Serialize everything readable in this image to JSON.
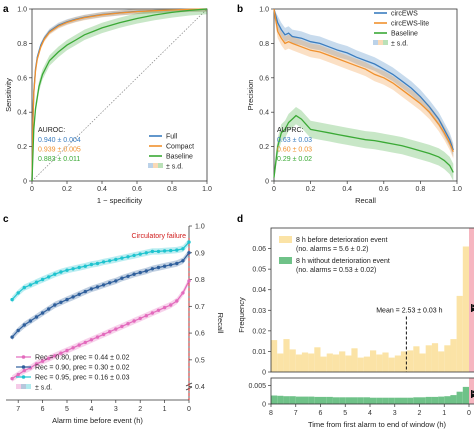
{
  "chart_data": [
    {
      "panel": "a",
      "type": "line",
      "xlabel": "1 − specificity",
      "ylabel": "Sensitivity",
      "xlim": [
        0,
        1.0
      ],
      "ylim": [
        0,
        1.0
      ],
      "xticks": [
        "0",
        "0.2",
        "0.4",
        "0.6",
        "0.8",
        "1.0"
      ],
      "yticks": [
        "0",
        "0.2",
        "0.4",
        "0.6",
        "0.8",
        "1.0"
      ],
      "legend": {
        "entries": [
          "Full",
          "Compact",
          "Baseline"
        ],
        "sd_label": "± s.d.",
        "placement": "bottom-right"
      },
      "annotation": {
        "title": "AUROC:",
        "lines": [
          "0.940 ± 0.004",
          "0.939 ± 0.005",
          "0.883 ± 0.011"
        ]
      },
      "colors": [
        "#3b7dbf",
        "#f0912e",
        "#3aa935"
      ],
      "series": [
        {
          "name": "Full",
          "x": [
            0,
            0.005,
            0.01,
            0.02,
            0.03,
            0.05,
            0.07,
            0.1,
            0.15,
            0.2,
            0.25,
            0.3,
            0.4,
            0.5,
            0.6,
            0.7,
            0.8,
            0.9,
            1.0
          ],
          "y": [
            0,
            0.35,
            0.52,
            0.65,
            0.72,
            0.79,
            0.83,
            0.87,
            0.905,
            0.925,
            0.94,
            0.952,
            0.968,
            0.978,
            0.986,
            0.991,
            0.995,
            0.998,
            1.0
          ],
          "sd": 0.015
        },
        {
          "name": "Compact",
          "x": [
            0,
            0.005,
            0.01,
            0.02,
            0.03,
            0.05,
            0.07,
            0.1,
            0.15,
            0.2,
            0.25,
            0.3,
            0.4,
            0.5,
            0.6,
            0.7,
            0.8,
            0.9,
            1.0
          ],
          "y": [
            0,
            0.34,
            0.51,
            0.64,
            0.71,
            0.78,
            0.825,
            0.865,
            0.9,
            0.922,
            0.938,
            0.95,
            0.966,
            0.977,
            0.985,
            0.99,
            0.994,
            0.998,
            1.0
          ],
          "sd": 0.015
        },
        {
          "name": "Baseline",
          "x": [
            0,
            0.01,
            0.02,
            0.04,
            0.06,
            0.08,
            0.1,
            0.15,
            0.2,
            0.25,
            0.3,
            0.35,
            0.4,
            0.5,
            0.6,
            0.7,
            0.8,
            0.9,
            1.0
          ],
          "y": [
            0,
            0.3,
            0.42,
            0.55,
            0.62,
            0.66,
            0.7,
            0.75,
            0.79,
            0.82,
            0.85,
            0.87,
            0.89,
            0.92,
            0.945,
            0.965,
            0.98,
            0.992,
            1.0
          ],
          "sd": 0.03
        }
      ]
    },
    {
      "panel": "b",
      "type": "line",
      "xlabel": "Recall",
      "ylabel": "Precision",
      "xlim": [
        0,
        1.0
      ],
      "ylim": [
        0,
        1.0
      ],
      "xticks": [
        "0",
        "0.2",
        "0.4",
        "0.6",
        "0.8",
        "1.0"
      ],
      "yticks": [
        "0",
        "0.2",
        "0.4",
        "0.6",
        "0.8",
        "1.0"
      ],
      "legend": {
        "entries": [
          "circEWS",
          "circEWS-lite",
          "Baseline"
        ],
        "sd_label": "± s.d.",
        "placement": "top-right"
      },
      "annotation": {
        "title": "AUPRC:",
        "lines": [
          "0.63 ± 0.03",
          "0.60 ± 0.03",
          "0.29 ± 0.02"
        ]
      },
      "colors": [
        "#3b7dbf",
        "#f0912e",
        "#3aa935"
      ],
      "series": [
        {
          "name": "circEWS",
          "x": [
            0,
            0.02,
            0.04,
            0.06,
            0.08,
            0.1,
            0.15,
            0.2,
            0.25,
            0.3,
            0.35,
            0.4,
            0.45,
            0.5,
            0.55,
            0.6,
            0.65,
            0.7,
            0.75,
            0.8,
            0.85,
            0.9,
            0.93,
            0.96,
            0.98
          ],
          "y": [
            1.0,
            0.92,
            0.88,
            0.85,
            0.86,
            0.84,
            0.83,
            0.81,
            0.8,
            0.78,
            0.76,
            0.745,
            0.72,
            0.7,
            0.68,
            0.65,
            0.62,
            0.58,
            0.54,
            0.49,
            0.43,
            0.36,
            0.3,
            0.24,
            0.18
          ],
          "sd": 0.04
        },
        {
          "name": "circEWS-lite",
          "x": [
            0,
            0.02,
            0.04,
            0.06,
            0.08,
            0.1,
            0.15,
            0.2,
            0.25,
            0.3,
            0.35,
            0.4,
            0.45,
            0.5,
            0.55,
            0.6,
            0.65,
            0.7,
            0.75,
            0.8,
            0.85,
            0.9,
            0.93,
            0.96,
            0.98
          ],
          "y": [
            1.0,
            0.87,
            0.83,
            0.8,
            0.81,
            0.8,
            0.78,
            0.76,
            0.75,
            0.73,
            0.71,
            0.69,
            0.67,
            0.65,
            0.62,
            0.6,
            0.57,
            0.53,
            0.49,
            0.45,
            0.4,
            0.33,
            0.28,
            0.22,
            0.17
          ],
          "sd": 0.04
        },
        {
          "name": "Baseline",
          "x": [
            0,
            0.02,
            0.04,
            0.06,
            0.08,
            0.1,
            0.12,
            0.15,
            0.2,
            0.25,
            0.3,
            0.35,
            0.4,
            0.45,
            0.5,
            0.55,
            0.6,
            0.65,
            0.7,
            0.75,
            0.8,
            0.85,
            0.9,
            0.93,
            0.96,
            0.98
          ],
          "y": [
            0.02,
            0.2,
            0.28,
            0.3,
            0.34,
            0.36,
            0.38,
            0.36,
            0.3,
            0.29,
            0.28,
            0.27,
            0.26,
            0.25,
            0.24,
            0.235,
            0.225,
            0.215,
            0.205,
            0.19,
            0.175,
            0.16,
            0.14,
            0.12,
            0.09,
            0.05
          ],
          "sd": 0.05
        }
      ]
    },
    {
      "panel": "c",
      "type": "line",
      "xlabel": "Alarm time before event (h)",
      "ylabel": "Recall",
      "xlim": [
        7.5,
        0
      ],
      "ylim": [
        0.35,
        1.0
      ],
      "xticks": [
        "7",
        "6",
        "5",
        "4",
        "3",
        "2",
        "1",
        "0"
      ],
      "yticks": [
        "0.4",
        "0.5",
        "0.6",
        "0.7",
        "0.8",
        "0.9",
        "1.0"
      ],
      "annotation": "Circulatory failure",
      "legend": {
        "entries": [
          "Rec = 0.80, prec = 0.44 ± 0.02",
          "Rec = 0.90, prec = 0.30 ± 0.02",
          "Rec = 0.95, prec = 0.16 ± 0.03"
        ],
        "sd_label": "± s.d.",
        "placement": "bottom-left"
      },
      "colors": [
        "#e36bbd",
        "#2f5f9c",
        "#1fc4cf"
      ],
      "x": [
        7.25,
        7.0,
        6.75,
        6.5,
        6.25,
        6.0,
        5.75,
        5.5,
        5.25,
        5.0,
        4.75,
        4.5,
        4.25,
        4.0,
        3.75,
        3.5,
        3.25,
        3.0,
        2.75,
        2.5,
        2.25,
        2.0,
        1.75,
        1.5,
        1.25,
        1.0,
        0.75,
        0.5,
        0.25,
        0.0
      ],
      "series": [
        {
          "name": "Rec = 0.80, prec = 0.44 ± 0.02",
          "values": [
            0.43,
            0.445,
            0.46,
            0.47,
            0.485,
            0.495,
            0.505,
            0.515,
            0.525,
            0.535,
            0.545,
            0.555,
            0.565,
            0.575,
            0.585,
            0.595,
            0.605,
            0.615,
            0.625,
            0.635,
            0.645,
            0.655,
            0.665,
            0.675,
            0.685,
            0.695,
            0.705,
            0.72,
            0.75,
            0.795
          ]
        },
        {
          "name": "Rec = 0.90, prec = 0.30 ± 0.02",
          "values": [
            0.585,
            0.61,
            0.63,
            0.645,
            0.66,
            0.675,
            0.69,
            0.705,
            0.715,
            0.725,
            0.735,
            0.745,
            0.755,
            0.765,
            0.772,
            0.78,
            0.788,
            0.795,
            0.805,
            0.812,
            0.82,
            0.826,
            0.832,
            0.84,
            0.845,
            0.85,
            0.855,
            0.86,
            0.87,
            0.9
          ]
        },
        {
          "name": "Rec = 0.95, prec = 0.16 ± 0.03",
          "values": [
            0.725,
            0.75,
            0.77,
            0.78,
            0.79,
            0.8,
            0.81,
            0.82,
            0.828,
            0.835,
            0.84,
            0.845,
            0.85,
            0.856,
            0.86,
            0.866,
            0.87,
            0.875,
            0.88,
            0.885,
            0.89,
            0.895,
            0.9,
            0.905,
            0.905,
            0.907,
            0.908,
            0.91,
            0.915,
            0.94
          ]
        }
      ]
    },
    {
      "panel": "d",
      "type": "bar",
      "xlabel": "Time from first alarm to end of window (h)",
      "ylabel": "Frequency",
      "xlim": [
        8,
        0
      ],
      "xticks": [
        "8",
        "7",
        "6",
        "5",
        "4",
        "3",
        "2",
        "1",
        "0"
      ],
      "legend": {
        "entries": [
          {
            "label": "8 h before deterioration event",
            "sub": "(no. alarms = 5.6 ± 0.2)"
          },
          {
            "label": "8 h without deterioration event",
            "sub": "(no. alarms = 0.53 ± 0.02)"
          }
        ],
        "placement": "top-left"
      },
      "annotation": "Mean = 2.53 ± 0.03 h",
      "mean": 2.53,
      "colors": [
        "#fbe3a6",
        "#6fc288",
        "#f6b6c0"
      ],
      "top": {
        "yticks": [
          "0",
          "0.01",
          "0.02",
          "0.03",
          "0.04",
          "0.05",
          "0.06"
        ],
        "ylim": [
          0,
          0.07
        ],
        "bin_width": 0.25,
        "bin_starts": [
          8.0,
          7.75,
          7.5,
          7.25,
          7.0,
          6.75,
          6.5,
          6.25,
          6.0,
          5.75,
          5.5,
          5.25,
          5.0,
          4.75,
          4.5,
          4.25,
          4.0,
          3.75,
          3.5,
          3.25,
          3.0,
          2.75,
          2.5,
          2.25,
          2.0,
          1.75,
          1.5,
          1.25,
          1.0,
          0.75,
          0.5,
          0.25
        ],
        "values": [
          0.0155,
          0.009,
          0.016,
          0.011,
          0.0085,
          0.0095,
          0.009,
          0.012,
          0.0075,
          0.009,
          0.0085,
          0.01,
          0.008,
          0.0115,
          0.007,
          0.0075,
          0.0105,
          0.0085,
          0.0095,
          0.007,
          0.008,
          0.01,
          0.0105,
          0.0125,
          0.009,
          0.013,
          0.014,
          0.01,
          0.013,
          0.016,
          0.037,
          0.061
        ]
      },
      "bottom": {
        "yticks": [
          "0",
          "0.005"
        ],
        "ylim": [
          0,
          0.007
        ],
        "bin_width": 0.25,
        "bin_starts": [
          8.0,
          7.75,
          7.5,
          7.25,
          7.0,
          6.75,
          6.5,
          6.25,
          6.0,
          5.75,
          5.5,
          5.25,
          5.0,
          4.75,
          4.5,
          4.25,
          4.0,
          3.75,
          3.5,
          3.25,
          3.0,
          2.75,
          2.5,
          2.25,
          2.0,
          1.75,
          1.5,
          1.25,
          1.0,
          0.75,
          0.5,
          0.25
        ],
        "values": [
          0.0023,
          0.0022,
          0.0021,
          0.0021,
          0.002,
          0.002,
          0.002,
          0.0019,
          0.0019,
          0.0019,
          0.0018,
          0.0018,
          0.0018,
          0.0018,
          0.0018,
          0.0018,
          0.0017,
          0.0017,
          0.0017,
          0.0017,
          0.0017,
          0.0017,
          0.0017,
          0.0018,
          0.0018,
          0.0019,
          0.0019,
          0.002,
          0.0021,
          0.0024,
          0.0033,
          0.0046
        ]
      }
    }
  ]
}
